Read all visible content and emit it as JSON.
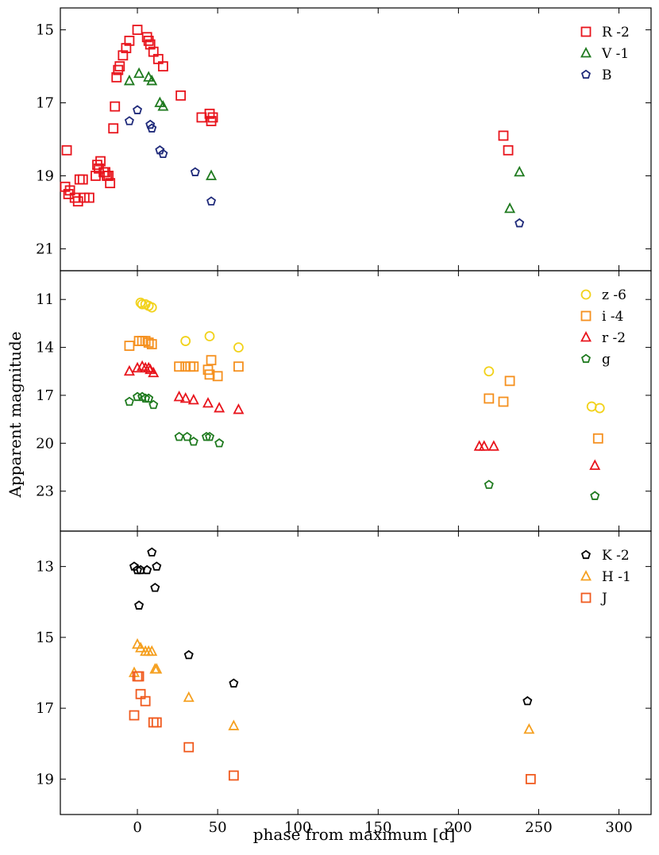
{
  "figure": {
    "xlabel": "phase from maximum [d]",
    "ylabel": "Apparent magnitude"
  },
  "colors": {
    "R": "#e8141c",
    "V": "#1f7a1f",
    "B": "#1f2a7a",
    "z": "#f2d21b",
    "i": "#f5901e",
    "r": "#e8141c",
    "g": "#1f7a1f",
    "K": "#000000",
    "H": "#f5a020",
    "J": "#f05a1e"
  },
  "chart_data": [
    {
      "type": "scatter",
      "panel": "top",
      "xlim": [
        -48,
        320
      ],
      "ylim": [
        21.6,
        14.4
      ],
      "y_inverted": true,
      "yticks": [
        15,
        17,
        19,
        21
      ],
      "legend_position": "top-right",
      "series": [
        {
          "name": "R -2",
          "marker": "square",
          "color_key": "R",
          "points": [
            [
              -44,
              18.3
            ],
            [
              -45,
              19.3
            ],
            [
              -43,
              19.5
            ],
            [
              -42,
              19.4
            ],
            [
              -39,
              19.6
            ],
            [
              -37,
              19.7
            ],
            [
              -36,
              19.1
            ],
            [
              -34,
              19.1
            ],
            [
              -33,
              19.6
            ],
            [
              -30,
              19.6
            ],
            [
              -26,
              19.0
            ],
            [
              -25,
              18.7
            ],
            [
              -24,
              18.8
            ],
            [
              -23,
              18.6
            ],
            [
              -21,
              18.9
            ],
            [
              -20,
              18.9
            ],
            [
              -19,
              19.0
            ],
            [
              -18,
              19.0
            ],
            [
              -17,
              19.2
            ],
            [
              -15,
              17.7
            ],
            [
              -14,
              17.1
            ],
            [
              -13,
              16.3
            ],
            [
              -12,
              16.1
            ],
            [
              -11,
              16.0
            ],
            [
              -9,
              15.7
            ],
            [
              -7,
              15.5
            ],
            [
              -5,
              15.3
            ],
            [
              0,
              15.0
            ],
            [
              6,
              15.2
            ],
            [
              7,
              15.3
            ],
            [
              8,
              15.4
            ],
            [
              10,
              15.6
            ],
            [
              13,
              15.8
            ],
            [
              16,
              16.0
            ],
            [
              27,
              16.8
            ],
            [
              40,
              17.4
            ],
            [
              45,
              17.3
            ],
            [
              46,
              17.5
            ],
            [
              47,
              17.4
            ],
            [
              228,
              17.9
            ],
            [
              231,
              18.3
            ]
          ]
        },
        {
          "name": "V -1",
          "marker": "triangle",
          "color_key": "V",
          "points": [
            [
              -5,
              16.4
            ],
            [
              1,
              16.2
            ],
            [
              7,
              16.3
            ],
            [
              9,
              16.4
            ],
            [
              14,
              17.0
            ],
            [
              16,
              17.1
            ],
            [
              46,
              19.0
            ],
            [
              232,
              19.9
            ],
            [
              238,
              18.9
            ]
          ]
        },
        {
          "name": "B",
          "marker": "pentagon",
          "color_key": "B",
          "points": [
            [
              -5,
              17.5
            ],
            [
              0,
              17.2
            ],
            [
              8,
              17.6
            ],
            [
              9,
              17.7
            ],
            [
              14,
              18.3
            ],
            [
              16,
              18.4
            ],
            [
              36,
              18.9
            ],
            [
              46,
              19.7
            ],
            [
              238,
              20.3
            ]
          ]
        }
      ]
    },
    {
      "type": "scatter",
      "panel": "middle",
      "xlim": [
        -48,
        320
      ],
      "ylim": [
        25.5,
        9.2
      ],
      "y_inverted": true,
      "yticks": [
        11,
        14,
        17,
        20,
        23
      ],
      "legend_position": "top-right",
      "series": [
        {
          "name": "z -6",
          "marker": "circle",
          "color_key": "z",
          "points": [
            [
              2,
              11.2
            ],
            [
              3,
              11.3
            ],
            [
              5,
              11.3
            ],
            [
              7,
              11.4
            ],
            [
              9,
              11.5
            ],
            [
              30,
              13.6
            ],
            [
              45,
              13.3
            ],
            [
              63,
              14.0
            ],
            [
              219,
              15.5
            ],
            [
              283,
              17.7
            ],
            [
              288,
              17.8
            ]
          ]
        },
        {
          "name": "i -4",
          "marker": "square",
          "color_key": "i",
          "points": [
            [
              -5,
              13.9
            ],
            [
              1,
              13.6
            ],
            [
              3,
              13.6
            ],
            [
              5,
              13.6
            ],
            [
              7,
              13.7
            ],
            [
              9,
              13.8
            ],
            [
              26,
              15.2
            ],
            [
              30,
              15.2
            ],
            [
              33,
              15.2
            ],
            [
              35,
              15.2
            ],
            [
              44,
              15.4
            ],
            [
              45,
              15.7
            ],
            [
              46,
              14.8
            ],
            [
              50,
              15.8
            ],
            [
              63,
              15.2
            ],
            [
              219,
              17.2
            ],
            [
              228,
              17.4
            ],
            [
              232,
              16.1
            ],
            [
              287,
              19.7
            ]
          ]
        },
        {
          "name": "r -2",
          "marker": "triangle",
          "color_key": "r",
          "points": [
            [
              -5,
              15.5
            ],
            [
              0,
              15.3
            ],
            [
              3,
              15.2
            ],
            [
              5,
              15.3
            ],
            [
              7,
              15.3
            ],
            [
              8,
              15.4
            ],
            [
              10,
              15.6
            ],
            [
              26,
              17.1
            ],
            [
              30,
              17.2
            ],
            [
              35,
              17.3
            ],
            [
              44,
              17.5
            ],
            [
              51,
              17.8
            ],
            [
              63,
              17.9
            ],
            [
              213,
              20.2
            ],
            [
              216,
              20.2
            ],
            [
              222,
              20.2
            ],
            [
              285,
              21.4
            ]
          ]
        },
        {
          "name": "g",
          "marker": "pentagon",
          "color_key": "g",
          "points": [
            [
              -5,
              17.4
            ],
            [
              0,
              17.1
            ],
            [
              3,
              17.1
            ],
            [
              5,
              17.2
            ],
            [
              7,
              17.2
            ],
            [
              10,
              17.6
            ],
            [
              26,
              19.6
            ],
            [
              31,
              19.6
            ],
            [
              35,
              19.9
            ],
            [
              43,
              19.6
            ],
            [
              45,
              19.6
            ],
            [
              51,
              20.0
            ],
            [
              219,
              22.6
            ],
            [
              285,
              23.3
            ]
          ]
        }
      ]
    },
    {
      "type": "scatter",
      "panel": "bottom",
      "xlim": [
        -48,
        320
      ],
      "ylim": [
        20.0,
        12.0
      ],
      "y_inverted": true,
      "yticks": [
        13,
        15,
        17,
        19
      ],
      "legend_position": "top-right",
      "series": [
        {
          "name": "K -2",
          "marker": "pentagon",
          "color_key": "K",
          "points": [
            [
              -2,
              13.0
            ],
            [
              0,
              13.1
            ],
            [
              2,
              13.1
            ],
            [
              6,
              13.1
            ],
            [
              9,
              12.6
            ],
            [
              11,
              13.6
            ],
            [
              12,
              13.0
            ],
            [
              1,
              14.1
            ],
            [
              32,
              15.5
            ],
            [
              60,
              16.3
            ],
            [
              243,
              16.8
            ]
          ]
        },
        {
          "name": "H -1",
          "marker": "triangle",
          "color_key": "H",
          "points": [
            [
              -2,
              16.0
            ],
            [
              0,
              15.2
            ],
            [
              2,
              15.3
            ],
            [
              5,
              15.4
            ],
            [
              7,
              15.4
            ],
            [
              9,
              15.4
            ],
            [
              11,
              15.9
            ],
            [
              12,
              15.9
            ],
            [
              32,
              16.7
            ],
            [
              60,
              17.5
            ],
            [
              244,
              17.6
            ]
          ]
        },
        {
          "name": "J",
          "marker": "square",
          "color_key": "J",
          "points": [
            [
              -2,
              17.2
            ],
            [
              0,
              16.1
            ],
            [
              1,
              16.1
            ],
            [
              2,
              16.6
            ],
            [
              5,
              16.8
            ],
            [
              10,
              17.4
            ],
            [
              12,
              17.4
            ],
            [
              32,
              18.1
            ],
            [
              60,
              18.9
            ],
            [
              245,
              19.0
            ]
          ]
        }
      ]
    }
  ],
  "xaxis": {
    "ticks": [
      0,
      50,
      100,
      150,
      200,
      250,
      300
    ]
  }
}
